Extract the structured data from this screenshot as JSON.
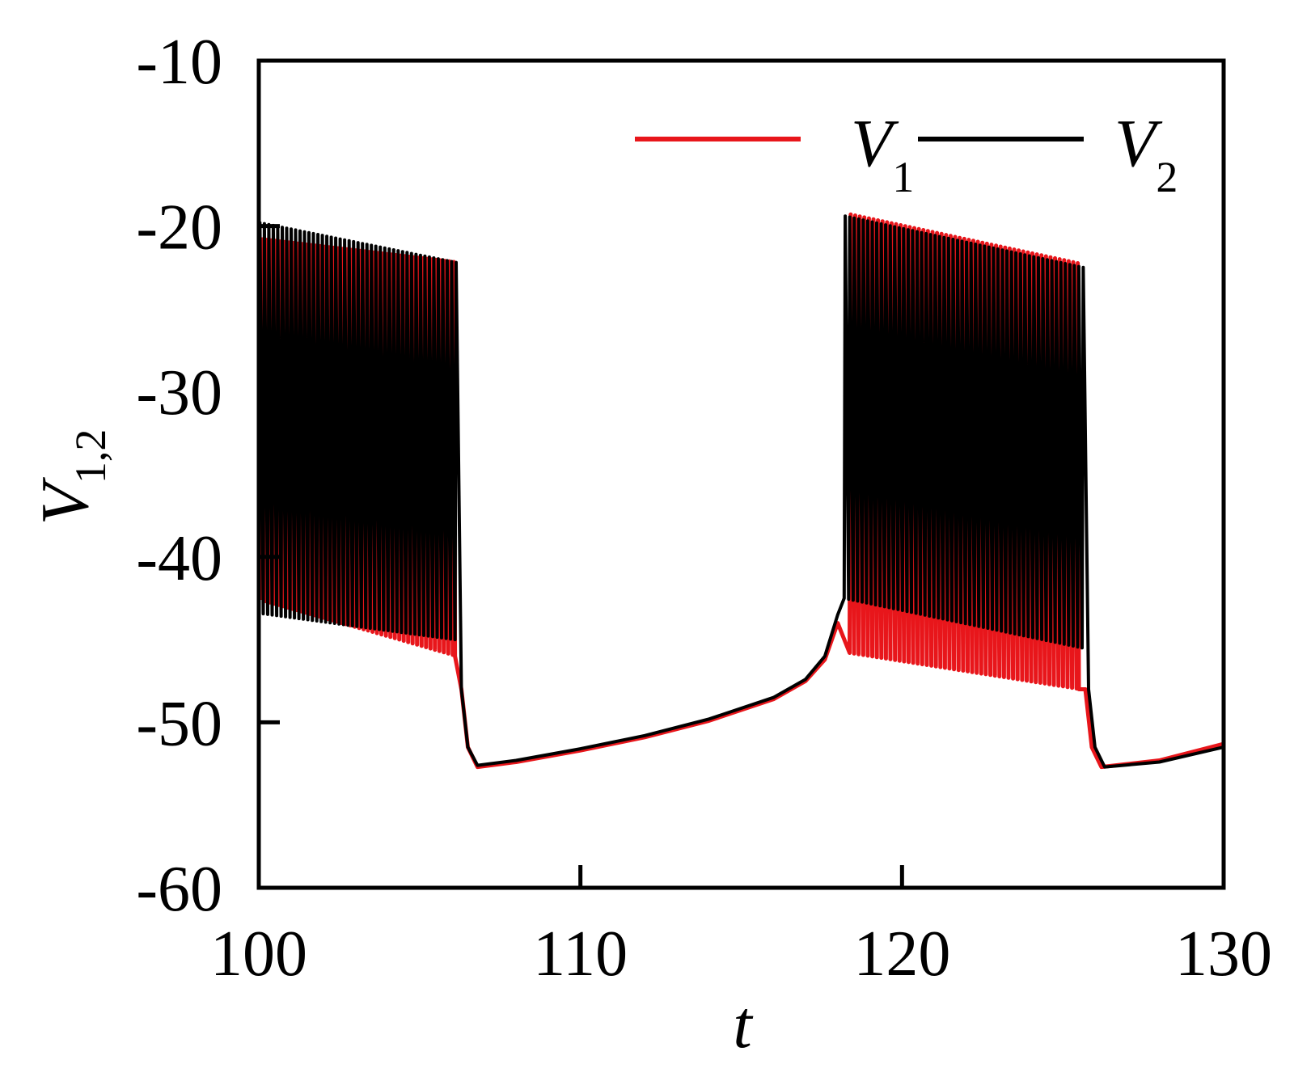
{
  "chart_data": {
    "type": "line",
    "xlabel": "t",
    "ylabel": {
      "base": "V",
      "sub": "1,2"
    },
    "xlim": [
      100,
      130
    ],
    "ylim": [
      -60,
      -10
    ],
    "xticks": [
      100,
      110,
      120,
      130
    ],
    "xtick_labels": [
      "100",
      "110",
      "120",
      "130"
    ],
    "yticks": [
      -60,
      -50,
      -40,
      -30,
      -20,
      -10
    ],
    "ytick_labels": [
      "-60",
      "-50",
      "-40",
      "-30",
      "-20",
      "-10"
    ],
    "grid": false,
    "legend_position": "top-right",
    "series": [
      {
        "name": "V1",
        "label_base": "V",
        "label_sub": "1",
        "color": "#e8161b",
        "bursts": [
          {
            "t_start": 100.0,
            "t_end": 106.1,
            "peak_start": -20.8,
            "peak_end": -22.2,
            "trough_start": -42.6,
            "trough_end": -46.0,
            "period": 0.14
          },
          {
            "t_start": 118.3,
            "t_end": 125.5,
            "peak_start": -19.3,
            "peak_end": -22.3,
            "trough_start": -45.8,
            "trough_end": -48.0,
            "period": 0.14
          }
        ],
        "envelope": [
          [
            106.1,
            -45.0
          ],
          [
            106.3,
            -48.0
          ],
          [
            106.5,
            -51.5
          ],
          [
            106.8,
            -52.7
          ],
          [
            108.0,
            -52.4
          ],
          [
            110.0,
            -51.7
          ],
          [
            112.0,
            -50.9
          ],
          [
            114.0,
            -49.9
          ],
          [
            116.0,
            -48.6
          ],
          [
            117.0,
            -47.5
          ],
          [
            117.6,
            -46.2
          ],
          [
            118.0,
            -44.0
          ],
          [
            118.3,
            -40.0
          ],
          [
            125.5,
            -44.0
          ],
          [
            125.7,
            -48.0
          ],
          [
            125.9,
            -51.5
          ],
          [
            126.2,
            -52.7
          ],
          [
            128.0,
            -52.3
          ],
          [
            130.0,
            -51.3
          ]
        ]
      },
      {
        "name": "V2",
        "label_base": "V",
        "label_sub": "2",
        "color": "#000000",
        "bursts": [
          {
            "t_start": 100.0,
            "t_end": 106.1,
            "peak_start": -19.8,
            "peak_end": -22.2,
            "trough_start": -43.4,
            "trough_end": -45.0,
            "period": 0.14
          },
          {
            "t_start": 118.2,
            "t_end": 125.6,
            "peak_start": -19.4,
            "peak_end": -22.5,
            "trough_start": -42.5,
            "trough_end": -45.5,
            "period": 0.14
          }
        ],
        "envelope": [
          [
            106.1,
            -44.0
          ],
          [
            106.3,
            -48.0
          ],
          [
            106.5,
            -51.5
          ],
          [
            106.8,
            -52.6
          ],
          [
            108.0,
            -52.3
          ],
          [
            110.0,
            -51.6
          ],
          [
            112.0,
            -50.8
          ],
          [
            114.0,
            -49.8
          ],
          [
            116.0,
            -48.5
          ],
          [
            117.0,
            -47.4
          ],
          [
            117.6,
            -46.0
          ],
          [
            118.0,
            -43.5
          ],
          [
            118.2,
            -40.0
          ],
          [
            125.6,
            -44.0
          ],
          [
            125.8,
            -48.0
          ],
          [
            126.0,
            -51.5
          ],
          [
            126.3,
            -52.7
          ],
          [
            128.0,
            -52.4
          ],
          [
            130.0,
            -51.5
          ]
        ]
      }
    ]
  }
}
